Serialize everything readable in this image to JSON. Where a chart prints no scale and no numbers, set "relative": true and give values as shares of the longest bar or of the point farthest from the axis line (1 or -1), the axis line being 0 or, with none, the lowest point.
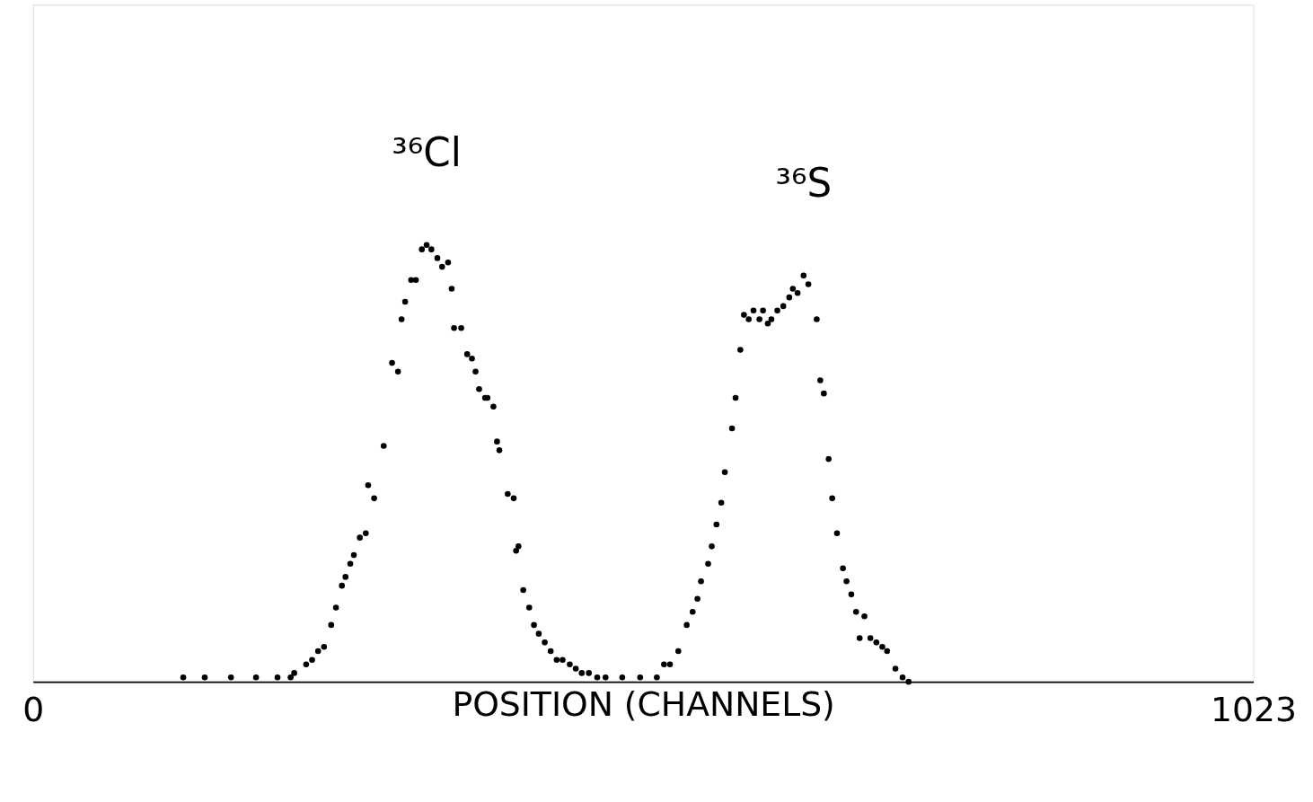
{
  "chart_data": {
    "type": "scatter",
    "relative": true,
    "xlabel": "POSITION (CHANNELS)",
    "xlim": [
      0,
      1023
    ],
    "xticks": [
      0,
      1023
    ],
    "grid": false,
    "legend": false,
    "marker": "circle",
    "annotations": [
      "³⁶Cl",
      "³⁶S"
    ],
    "series": [
      {
        "color": "#000000",
        "x": [
          126,
          144,
          166,
          187,
          205,
          216,
          219,
          229,
          234,
          239,
          244,
          250,
          254,
          259,
          262,
          266,
          269,
          274,
          279,
          281,
          286,
          294,
          301,
          306,
          309,
          312,
          317,
          321,
          326,
          330,
          334,
          339,
          343,
          348,
          351,
          353,
          359,
          364,
          368,
          371,
          374,
          379,
          381,
          386,
          389,
          391,
          398,
          403,
          405,
          407,
          411,
          416,
          420,
          424,
          429,
          434,
          439,
          444,
          450,
          455,
          460,
          466,
          473,
          480,
          494,
          509,
          523
        ],
        "values": [
          0.01,
          0.01,
          0.01,
          0.01,
          0.01,
          0.01,
          0.02,
          0.04,
          0.05,
          0.07,
          0.08,
          0.13,
          0.17,
          0.22,
          0.24,
          0.27,
          0.29,
          0.33,
          0.34,
          0.45,
          0.42,
          0.54,
          0.73,
          0.71,
          0.83,
          0.87,
          0.92,
          0.92,
          0.99,
          1.0,
          0.99,
          0.97,
          0.95,
          0.96,
          0.9,
          0.81,
          0.81,
          0.75,
          0.74,
          0.71,
          0.67,
          0.65,
          0.65,
          0.63,
          0.55,
          0.53,
          0.43,
          0.42,
          0.3,
          0.31,
          0.21,
          0.17,
          0.13,
          0.11,
          0.09,
          0.07,
          0.05,
          0.05,
          0.04,
          0.03,
          0.02,
          0.02,
          0.01,
          0.01,
          0.01,
          0.01,
          0.01
        ]
      },
      {
        "color": "#000000",
        "x": [
          529,
          534,
          541,
          548,
          553,
          557,
          560,
          566,
          569,
          573,
          577,
          580,
          586,
          589,
          593,
          596,
          600,
          604,
          609,
          612,
          616,
          619,
          624,
          629,
          634,
          637,
          641,
          646,
          650,
          657,
          660,
          663,
          667,
          670,
          674,
          679,
          682,
          686,
          690,
          693,
          697,
          702,
          707,
          712,
          716,
          723,
          729,
          734
        ],
        "values": [
          0.04,
          0.04,
          0.07,
          0.13,
          0.16,
          0.19,
          0.23,
          0.27,
          0.31,
          0.36,
          0.41,
          0.48,
          0.58,
          0.65,
          0.76,
          0.84,
          0.83,
          0.85,
          0.83,
          0.85,
          0.82,
          0.83,
          0.85,
          0.86,
          0.88,
          0.9,
          0.89,
          0.93,
          0.91,
          0.83,
          0.69,
          0.66,
          0.51,
          0.42,
          0.34,
          0.26,
          0.23,
          0.2,
          0.16,
          0.1,
          0.15,
          0.1,
          0.09,
          0.08,
          0.07,
          0.03,
          0.01,
          0.0
        ]
      }
    ]
  }
}
